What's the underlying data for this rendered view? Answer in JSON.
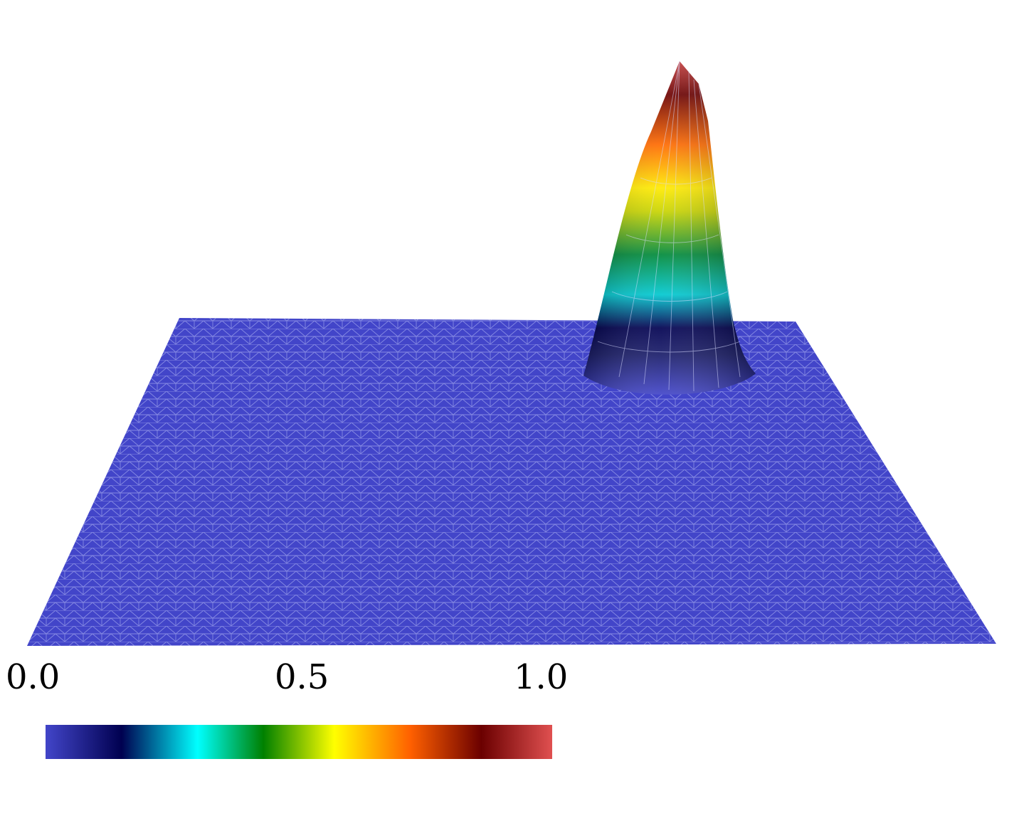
{
  "colorbar": {
    "ticks": [
      "0.0",
      "0.5",
      "1.0"
    ],
    "range": [
      0.0,
      1.0
    ],
    "gradient_stops": [
      {
        "value": 0.0,
        "color": "#4245c9"
      },
      {
        "value": 0.15,
        "color": "#000050"
      },
      {
        "value": 0.3,
        "color": "#00ffff"
      },
      {
        "value": 0.43,
        "color": "#008000"
      },
      {
        "value": 0.57,
        "color": "#ffff00"
      },
      {
        "value": 0.72,
        "color": "#ff6000"
      },
      {
        "value": 0.86,
        "color": "#6b0000"
      },
      {
        "value": 1.0,
        "color": "#e05050"
      }
    ]
  },
  "surface": {
    "base_color": "#4245c9",
    "mesh_line_color": "#9aa0ea",
    "peak_value": 1.0
  }
}
